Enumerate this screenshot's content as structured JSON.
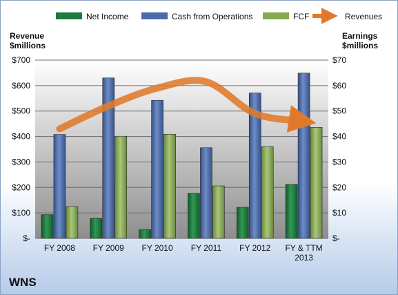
{
  "chart_data": {
    "type": "bar",
    "categories": [
      "FY 2008",
      "FY 2009",
      "FY 2010",
      "FY 2011",
      "FY 2012",
      "FY & TTM 2013"
    ],
    "series": [
      {
        "name": "Net Income",
        "axis": "right",
        "color": "#1f7a3f",
        "values": [
          9.3,
          7.8,
          3.4,
          17.7,
          12.2,
          21.2
        ]
      },
      {
        "name": "Cash from Operations",
        "axis": "right",
        "color": "#4a6aa8",
        "values": [
          40.8,
          63.0,
          54.2,
          35.6,
          57.1,
          64.9
        ]
      },
      {
        "name": "FCF",
        "axis": "right",
        "color": "#86a852",
        "values": [
          12.5,
          40.1,
          40.9,
          20.6,
          36.0,
          43.6
        ]
      },
      {
        "name": "Revenues",
        "axis": "left",
        "type": "line",
        "color": "#e07a2a",
        "values": [
          430,
          520,
          590,
          615,
          490,
          460
        ]
      }
    ],
    "left_axis": {
      "label_line1": "Revenue",
      "label_line2": "$millions",
      "range": [
        0,
        700
      ],
      "tick_labels": [
        "$-",
        "$100",
        "$200",
        "$300",
        "$400",
        "$500",
        "$600",
        "$700"
      ]
    },
    "right_axis": {
      "label_line1": "Earnings",
      "label_line2": "$millions",
      "range": [
        0,
        70
      ],
      "tick_labels": [
        "$-",
        "$10",
        "$20",
        "$30",
        "$40",
        "$50",
        "$60",
        "$70"
      ]
    },
    "legend": {
      "position": "top",
      "entries": [
        "Net Income",
        "Cash from Operations",
        "FCF",
        "Revenues"
      ]
    },
    "grid": true,
    "company": "WNS"
  }
}
